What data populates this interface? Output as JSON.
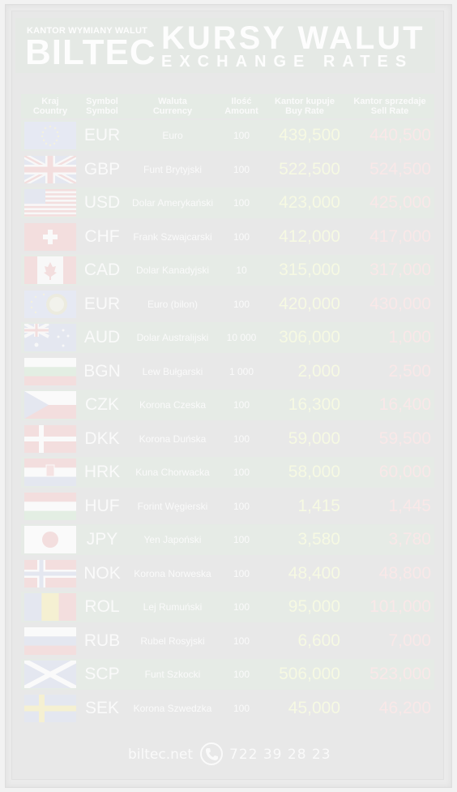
{
  "header": {
    "brand_small": "KANTOR WYMIANY WALUT",
    "brand": "BILTEC",
    "title": "KURSY WALUT",
    "subtitle": "EXCHANGE RATES"
  },
  "columns": {
    "country_pl": "Kraj",
    "country_en": "Country",
    "symbol_pl": "Symbol",
    "symbol_en": "Symbol",
    "currency_pl": "Waluta",
    "currency_en": "Currency",
    "amount_pl": "Ilość",
    "amount_en": "Amount",
    "buy_pl": "Kantor kupuje",
    "buy_en": "Buy Rate",
    "sell_pl": "Kantor sprzedaje",
    "sell_en": "Sell Rate"
  },
  "rows": [
    {
      "flag": "eu-flag-icon",
      "symbol": "EUR",
      "currency": "Euro",
      "amount": "100",
      "buy": "439,500",
      "sell": "440,500"
    },
    {
      "flag": "uk-flag-icon",
      "symbol": "GBP",
      "currency": "Funt Brytyjski",
      "amount": "100",
      "buy": "522,500",
      "sell": "524,500"
    },
    {
      "flag": "us-flag-icon",
      "symbol": "USD",
      "currency": "Dolar Amerykański",
      "amount": "100",
      "buy": "423,000",
      "sell": "425,000"
    },
    {
      "flag": "ch-flag-icon",
      "symbol": "CHF",
      "currency": "Frank Szwajcarski",
      "amount": "100",
      "buy": "412,000",
      "sell": "417,000"
    },
    {
      "flag": "ca-flag-icon",
      "symbol": "CAD",
      "currency": "Dolar Kanadyjski",
      "amount": "10",
      "buy": "315,000",
      "sell": "317,000"
    },
    {
      "flag": "eu-coin-flag-icon",
      "symbol": "EUR",
      "currency": "Euro (bilon)",
      "amount": "100",
      "buy": "420,000",
      "sell": "430,000"
    },
    {
      "flag": "au-flag-icon",
      "symbol": "AUD",
      "currency": "Dolar Australijski",
      "amount": "10 000",
      "buy": "306,000",
      "sell": "1,000"
    },
    {
      "flag": "bg-flag-icon",
      "symbol": "BGN",
      "currency": "Lew Bułgarski",
      "amount": "1 000",
      "buy": "2,000",
      "sell": "2,500"
    },
    {
      "flag": "cz-flag-icon",
      "symbol": "CZK",
      "currency": "Korona Czeska",
      "amount": "100",
      "buy": "16,300",
      "sell": "16,400"
    },
    {
      "flag": "dk-flag-icon",
      "symbol": "DKK",
      "currency": "Korona Duńska",
      "amount": "100",
      "buy": "59,000",
      "sell": "59,500"
    },
    {
      "flag": "hr-flag-icon",
      "symbol": "HRK",
      "currency": "Kuna Chorwacka",
      "amount": "100",
      "buy": "58,000",
      "sell": "60,000"
    },
    {
      "flag": "hu-flag-icon",
      "symbol": "HUF",
      "currency": "Forint Węgierski",
      "amount": "100",
      "buy": "1,415",
      "sell": "1,445"
    },
    {
      "flag": "jp-flag-icon",
      "symbol": "JPY",
      "currency": "Yen Japoński",
      "amount": "100",
      "buy": "3,580",
      "sell": "3,780"
    },
    {
      "flag": "no-flag-icon",
      "symbol": "NOK",
      "currency": "Korona Norweska",
      "amount": "100",
      "buy": "48,400",
      "sell": "48,800"
    },
    {
      "flag": "ro-flag-icon",
      "symbol": "ROL",
      "currency": "Lej Rumuński",
      "amount": "100",
      "buy": "95,000",
      "sell": "101,000"
    },
    {
      "flag": "ru-flag-icon",
      "symbol": "RUB",
      "currency": "Rubel Rosyjski",
      "amount": "100",
      "buy": "6,600",
      "sell": "7,000"
    },
    {
      "flag": "scot-flag-icon",
      "symbol": "SCP",
      "currency": "Funt Szkocki",
      "amount": "100",
      "buy": "506,000",
      "sell": "523,000"
    },
    {
      "flag": "se-flag-icon",
      "symbol": "SEK",
      "currency": "Korona Szwedzka",
      "amount": "100",
      "buy": "45,000",
      "sell": "46,200"
    }
  ],
  "footer": {
    "site": "biltec.net",
    "phone_icon": "phone-icon",
    "phone": "722 39 28 23"
  }
}
